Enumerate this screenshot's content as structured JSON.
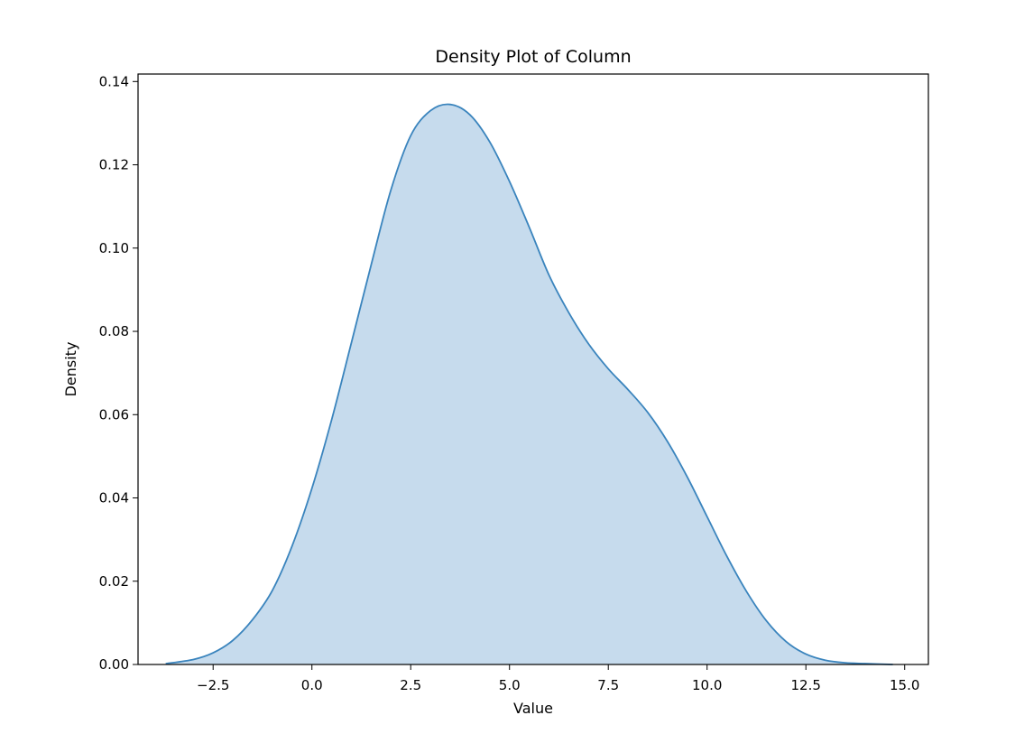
{
  "chart_data": {
    "type": "area",
    "title": "Density Plot of Column",
    "xlabel": "Value",
    "ylabel": "Density",
    "xlim": [
      -4.4,
      15.6
    ],
    "ylim": [
      0,
      0.1418
    ],
    "x_ticks": [
      -2.5,
      0.0,
      2.5,
      5.0,
      7.5,
      10.0,
      12.5,
      15.0
    ],
    "x_tick_labels": [
      "−2.5",
      "0.0",
      "2.5",
      "5.0",
      "7.5",
      "10.0",
      "12.5",
      "15.0"
    ],
    "y_ticks": [
      0.0,
      0.02,
      0.04,
      0.06,
      0.08,
      0.1,
      0.12,
      0.14
    ],
    "y_tick_labels": [
      "0.00",
      "0.02",
      "0.04",
      "0.06",
      "0.08",
      "0.10",
      "0.12",
      "0.14"
    ],
    "grid": false,
    "line_color": "#3a84bd",
    "fill_color": "#c6dbed",
    "series": [
      {
        "x": [
          -3.7,
          -3.0,
          -2.5,
          -2.0,
          -1.5,
          -1.0,
          -0.5,
          0.0,
          0.5,
          1.0,
          1.5,
          2.0,
          2.5,
          3.0,
          3.5,
          4.0,
          4.5,
          5.0,
          5.5,
          6.0,
          6.5,
          7.0,
          7.5,
          8.0,
          8.5,
          9.0,
          9.5,
          10.0,
          10.5,
          11.0,
          11.5,
          12.0,
          12.5,
          13.0,
          13.5,
          14.0,
          14.7
        ],
        "y": [
          0.0002,
          0.0012,
          0.0028,
          0.0058,
          0.0108,
          0.0178,
          0.0285,
          0.0423,
          0.0588,
          0.0773,
          0.096,
          0.114,
          0.127,
          0.133,
          0.1345,
          0.132,
          0.1255,
          0.116,
          0.105,
          0.0935,
          0.0845,
          0.077,
          0.071,
          0.066,
          0.0605,
          0.0535,
          0.045,
          0.0355,
          0.026,
          0.0175,
          0.0105,
          0.0055,
          0.0025,
          0.001,
          0.0004,
          0.0002,
          0.0
        ]
      }
    ]
  }
}
